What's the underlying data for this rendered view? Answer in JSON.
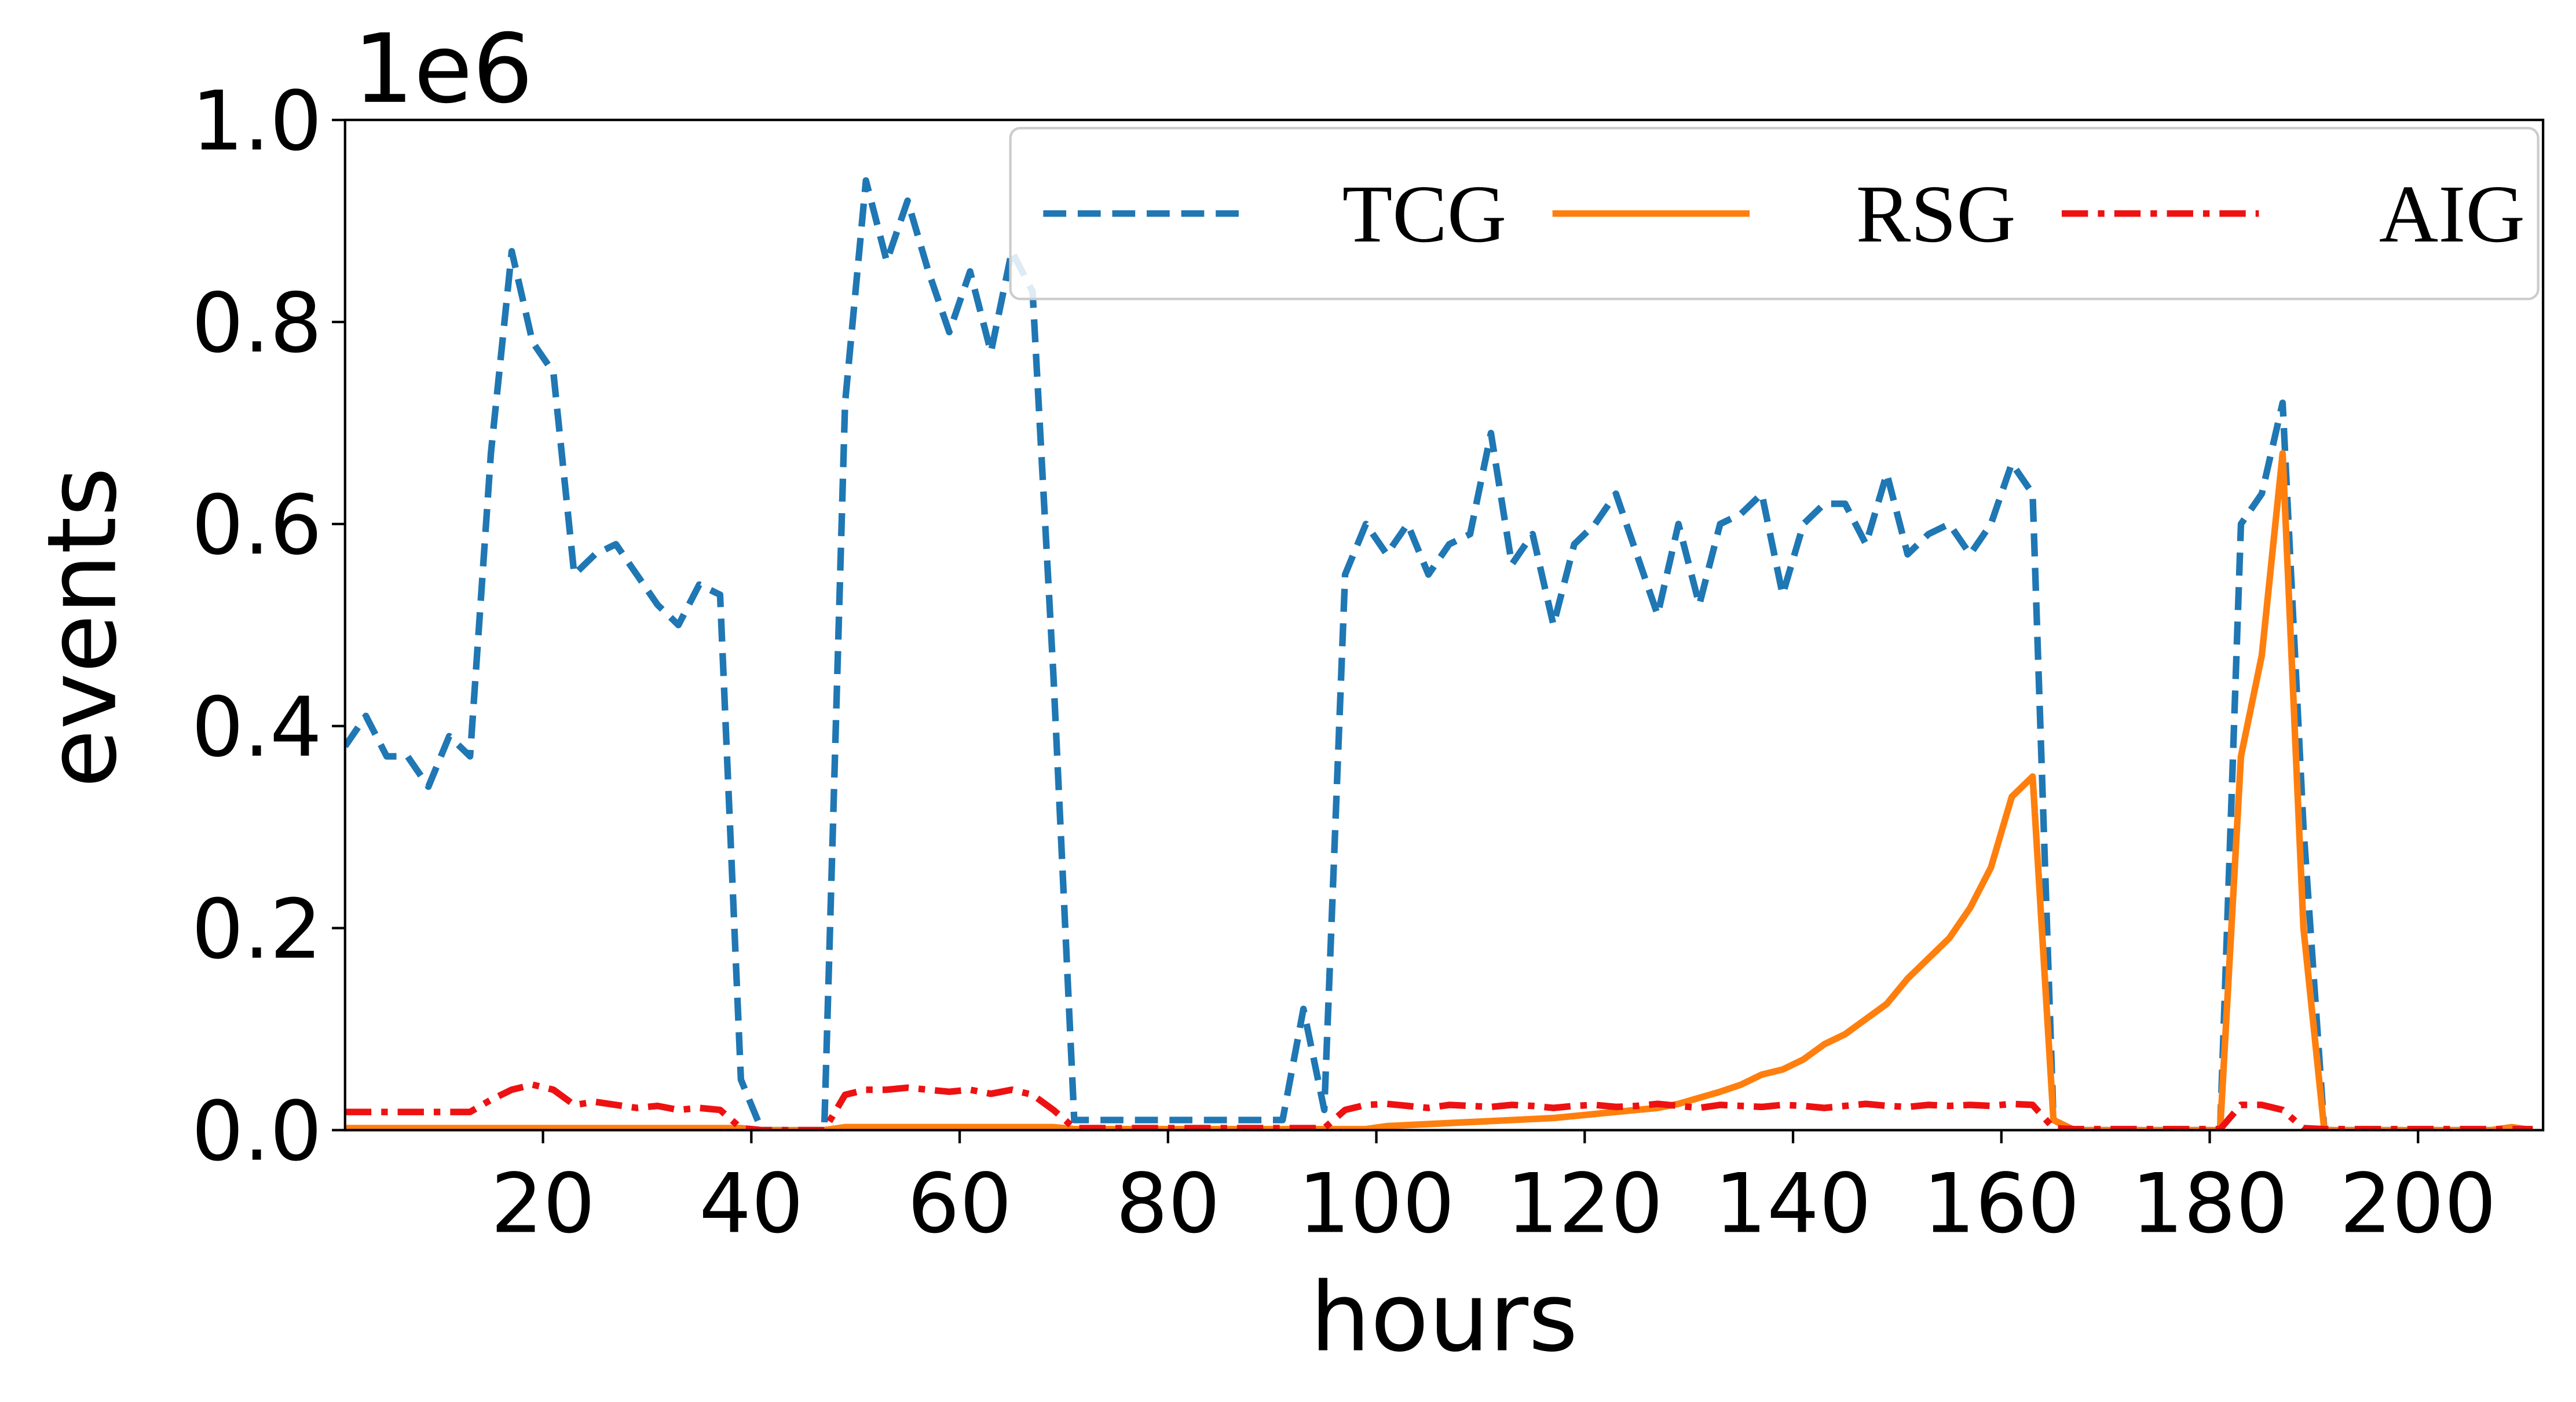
{
  "chart_data": {
    "type": "line",
    "xlabel": "hours",
    "ylabel": "events",
    "y_offset_label": "1e6",
    "x": [
      1,
      3,
      5,
      7,
      9,
      11,
      13,
      15,
      17,
      19,
      21,
      23,
      25,
      27,
      29,
      31,
      33,
      35,
      37,
      39,
      41,
      43,
      45,
      47,
      49,
      51,
      53,
      55,
      57,
      59,
      61,
      63,
      65,
      67,
      69,
      71,
      73,
      75,
      77,
      79,
      81,
      83,
      85,
      87,
      89,
      91,
      93,
      95,
      97,
      99,
      101,
      103,
      105,
      107,
      109,
      111,
      113,
      115,
      117,
      119,
      121,
      123,
      125,
      127,
      129,
      131,
      133,
      135,
      137,
      139,
      141,
      143,
      145,
      147,
      149,
      151,
      153,
      155,
      157,
      159,
      161,
      163,
      165,
      167,
      169,
      171,
      173,
      175,
      177,
      179,
      181,
      183,
      185,
      187,
      189,
      191,
      193,
      195,
      197,
      199,
      201,
      203,
      205,
      207,
      209,
      211
    ],
    "series": [
      {
        "name": "TCG",
        "color": "#1f77b4",
        "dash": "dashed",
        "values": [
          0.38,
          0.41,
          0.37,
          0.37,
          0.34,
          0.39,
          0.37,
          0.67,
          0.87,
          0.78,
          0.75,
          0.55,
          0.57,
          0.58,
          0.55,
          0.52,
          0.5,
          0.54,
          0.53,
          0.05,
          0,
          0,
          0,
          0,
          0.72,
          0.94,
          0.86,
          0.92,
          0.85,
          0.79,
          0.85,
          0.77,
          0.87,
          0.83,
          0.45,
          0.01,
          0.01,
          0.01,
          0.01,
          0.01,
          0.01,
          0.01,
          0.01,
          0.01,
          0.01,
          0.01,
          0.12,
          0.02,
          0.55,
          0.6,
          0.57,
          0.6,
          0.55,
          0.58,
          0.59,
          0.69,
          0.56,
          0.59,
          0.5,
          0.58,
          0.6,
          0.63,
          0.57,
          0.51,
          0.6,
          0.52,
          0.6,
          0.61,
          0.63,
          0.53,
          0.6,
          0.62,
          0.62,
          0.58,
          0.65,
          0.57,
          0.59,
          0.6,
          0.57,
          0.6,
          0.66,
          0.63,
          0.01,
          0,
          0,
          0,
          0,
          0,
          0,
          0,
          0,
          0.6,
          0.63,
          0.72,
          0.3,
          0,
          0,
          0,
          0,
          0,
          0,
          0,
          0,
          0,
          0,
          0
        ]
      },
      {
        "name": "RSG",
        "color": "#ff7f0e",
        "dash": "solid",
        "values": [
          0.002,
          0.002,
          0.002,
          0.002,
          0.002,
          0.002,
          0.002,
          0.002,
          0.002,
          0.002,
          0.002,
          0.002,
          0.002,
          0.002,
          0.002,
          0.002,
          0.002,
          0.002,
          0.002,
          0.002,
          0,
          0,
          0,
          0,
          0.003,
          0.003,
          0.003,
          0.003,
          0.003,
          0.003,
          0.003,
          0.003,
          0.003,
          0.003,
          0.003,
          0.001,
          0.001,
          0.001,
          0.001,
          0.001,
          0.001,
          0.001,
          0.001,
          0.001,
          0.001,
          0.001,
          0.001,
          0.001,
          0.001,
          0.001,
          0.004,
          0.005,
          0.006,
          0.007,
          0.008,
          0.009,
          0.01,
          0.011,
          0.012,
          0.014,
          0.016,
          0.018,
          0.02,
          0.022,
          0.026,
          0.032,
          0.038,
          0.045,
          0.055,
          0.06,
          0.07,
          0.085,
          0.095,
          0.11,
          0.125,
          0.15,
          0.17,
          0.19,
          0.22,
          0.26,
          0.33,
          0.35,
          0.01,
          0,
          0,
          0,
          0,
          0,
          0,
          0,
          0,
          0.37,
          0.47,
          0.67,
          0.2,
          0,
          0,
          0,
          0,
          0,
          0,
          0,
          0,
          0,
          0.003,
          0
        ]
      },
      {
        "name": "AIG",
        "color": "#ee1111",
        "dash": "dashdot",
        "values": [
          0.018,
          0.018,
          0.018,
          0.018,
          0.018,
          0.018,
          0.018,
          0.03,
          0.04,
          0.045,
          0.04,
          0.025,
          0.028,
          0.025,
          0.022,
          0.024,
          0.02,
          0.022,
          0.02,
          0.002,
          0,
          0,
          0,
          0,
          0.035,
          0.04,
          0.04,
          0.042,
          0.04,
          0.038,
          0.04,
          0.036,
          0.04,
          0.035,
          0.02,
          0.002,
          0.002,
          0.002,
          0.002,
          0.002,
          0.002,
          0.002,
          0.002,
          0.002,
          0.002,
          0.002,
          0.002,
          0.002,
          0.02,
          0.025,
          0.026,
          0.024,
          0.022,
          0.025,
          0.024,
          0.023,
          0.025,
          0.024,
          0.022,
          0.024,
          0.025,
          0.023,
          0.024,
          0.026,
          0.024,
          0.022,
          0.025,
          0.024,
          0.023,
          0.025,
          0.024,
          0.022,
          0.024,
          0.026,
          0.024,
          0.023,
          0.025,
          0.024,
          0.025,
          0.024,
          0.026,
          0.025,
          0.002,
          0.001,
          0.001,
          0.001,
          0.001,
          0.001,
          0.001,
          0.001,
          0.001,
          0.025,
          0.025,
          0.02,
          0.002,
          0.001,
          0.001,
          0.001,
          0.001,
          0.001,
          0.001,
          0.001,
          0.001,
          0.001,
          0.001,
          0.001
        ]
      }
    ],
    "xlim": [
      1,
      212
    ],
    "ylim": [
      0,
      1
    ],
    "xticks": [
      20,
      40,
      60,
      80,
      100,
      120,
      140,
      160,
      180,
      200
    ],
    "yticks": [
      {
        "value": 0,
        "label": "0.0"
      },
      0.2,
      0.4,
      0.6,
      0.8,
      {
        "value": 1,
        "label": "1.0"
      }
    ],
    "legend": "upper right",
    "legend_columns": 3,
    "grid": false
  }
}
